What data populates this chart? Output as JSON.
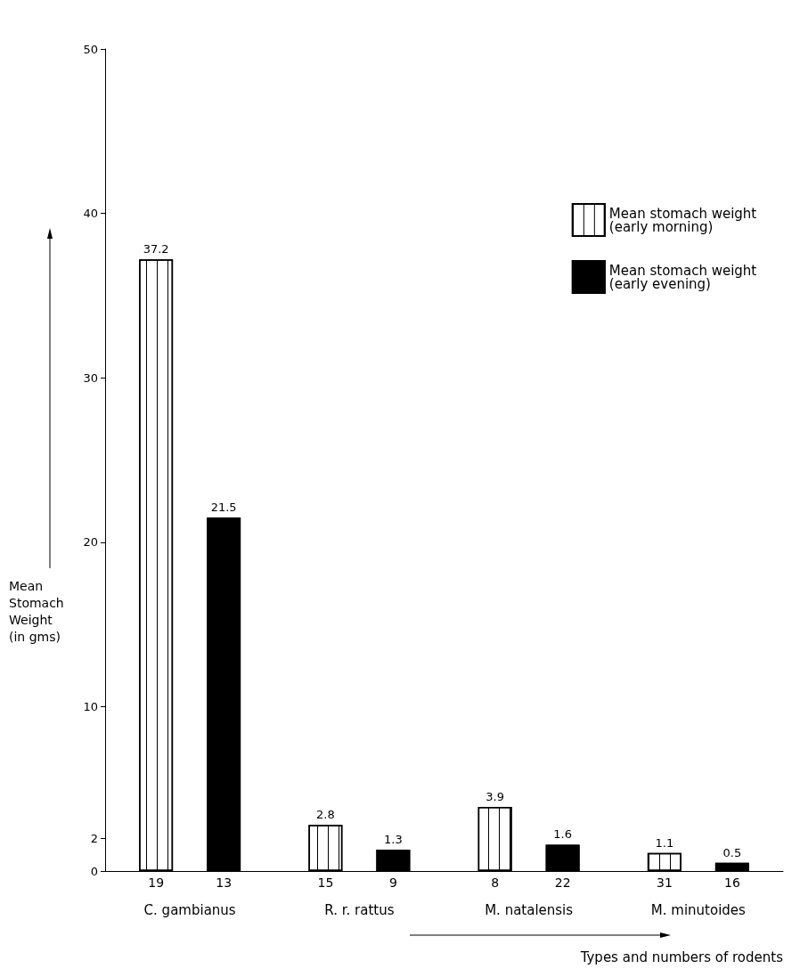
{
  "chart_data": {
    "type": "bar",
    "xlabel": "Types and numbers of rodents",
    "ylabel": "Mean Stomach Weight (in gms)",
    "categories": [
      "C. gambianus",
      "R. r. rattus",
      "M. natalensis",
      "M. minutoides"
    ],
    "series": [
      {
        "name": "Mean stomach weight (early morning)",
        "color": "#ffffff",
        "values": [
          37.2,
          2.8,
          3.9,
          1.1
        ]
      },
      {
        "name": "Mean stomach weight (early evening)",
        "color": "#000000",
        "values": [
          21.5,
          1.3,
          1.6,
          0.5
        ]
      }
    ],
    "ylim": [
      0,
      50
    ],
    "yticks": [
      0,
      2,
      10,
      20,
      30,
      40,
      50
    ],
    "grid": false,
    "legend": "top right",
    "data_labels": true,
    "annotations": [
      "19",
      "13",
      "15",
      "9",
      "8",
      "22",
      "31",
      "16"
    ]
  }
}
